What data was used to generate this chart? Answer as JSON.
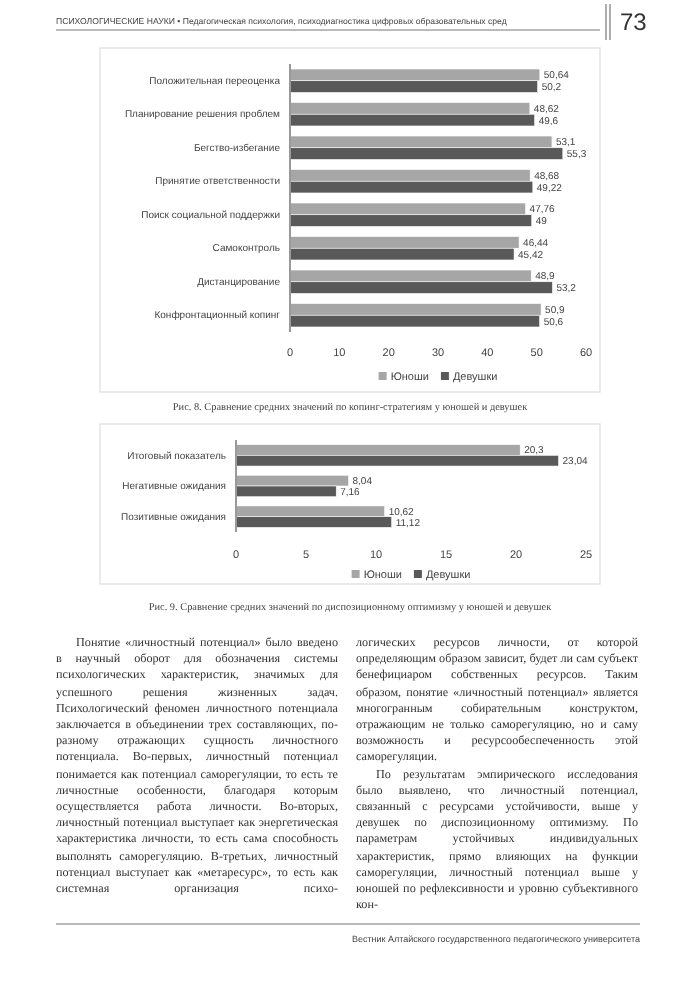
{
  "chart_data": [
    {
      "type": "bar",
      "orientation": "horizontal",
      "categories": [
        "Положительная переоценка",
        "Планирование решения проблем",
        "Бегство-избегание",
        "Принятие ответственности",
        "Поиск социальной поддержки",
        "Самоконтроль",
        "Дистанцирование",
        "Конфронтационный копинг"
      ],
      "series": [
        {
          "name": "Юноши",
          "color": "#a6a6a6",
          "values": [
            50.64,
            48.62,
            53.1,
            48.68,
            47.76,
            46.44,
            48.9,
            50.9
          ],
          "value_labels": [
            "50,64",
            "48,62",
            "53,1",
            "48,68",
            "47,76",
            "46,44",
            "48,9",
            "50,9"
          ]
        },
        {
          "name": "Девушки",
          "color": "#595959",
          "values": [
            50.2,
            49.6,
            55.3,
            49.22,
            49,
            45.42,
            53.2,
            50.6
          ],
          "value_labels": [
            "50,2",
            "49,6",
            "55,3",
            "49,22",
            "49",
            "45,42",
            "53,2",
            "50,6"
          ]
        }
      ],
      "xlim": [
        0,
        60
      ],
      "xticks": [
        0,
        10,
        20,
        30,
        40,
        50,
        60
      ],
      "legend": "bottom",
      "annotations": [
        "ПСИХОЛОГИЧЕСКИЕ НАУКИ • Педагогическая психология, психодиагностика цифровых образовательных сред",
        "73",
        "Рис. 8. Сравнение средних значений по копинг-стратегиям у юношей и девушек"
      ]
    },
    {
      "type": "bar",
      "orientation": "horizontal",
      "categories": [
        "Итоговый показатель",
        "Негативные ожидания",
        "Позитивные ожидания"
      ],
      "series": [
        {
          "name": "Юноши",
          "color": "#a6a6a6",
          "values": [
            20.3,
            8.04,
            10.62
          ],
          "value_labels": [
            "20,3",
            "8,04",
            "10,62"
          ]
        },
        {
          "name": "Девушки",
          "color": "#595959",
          "values": [
            23.04,
            7.16,
            11.12
          ],
          "value_labels": [
            "23,04",
            "7,16",
            "11,12"
          ]
        }
      ],
      "xlim": [
        0,
        25
      ],
      "xticks": [
        0,
        5,
        10,
        15,
        20,
        25
      ],
      "legend": "bottom",
      "annotations": [
        "Рис. 9. Сравнение средних значений по диспозиционному оптимизму у юношей и девушек",
        "Понятие «личностный потенциал» было введено в научный оборот для обозначения системы психологических характеристик, значимых для успешного решения жизненных задач. Психологический феномен личностного потенциала заключается в объединении трех составляющих, по-разному отражающих сущность личностного потенциала. Во-первых, личностный потенциал понимается как потенциал саморегуляции, то есть те личностные особенности, благодаря которым осуществляется работа личности. Во-вторых, личностный потенциал выступает как энергетическая характеристика личности, то есть сама способность выполнять саморегуляцию. В-третьих, личностный потенциал выступает как «метаресурс», то есть как системная организация психо-",
        "логических ресурсов личности, от которой определяющим образом зависит, будет ли сам субъект бенефициаром собственных ресурсов. Таким образом, понятие «личностный потенциал» является многогранным собирательным конструктом, отражающим не только саморегуляцию, но и саму возможность и ресурсообеспеченность этой саморегуляции.",
        "По результатам эмпирического исследования было выявлено, что личностный потенциал, связанный с ресурсами устойчивости, выше у девушек по диспозиционному оптимизму. По параметрам устойчивых индивидуальных характеристик, прямо влияющих на функции саморегуляции, личностный потенциал выше у юношей по рефлексивности и уровню субъективного кон-",
        "Вестник Алтайского государственного педагогического университета"
      ]
    }
  ]
}
